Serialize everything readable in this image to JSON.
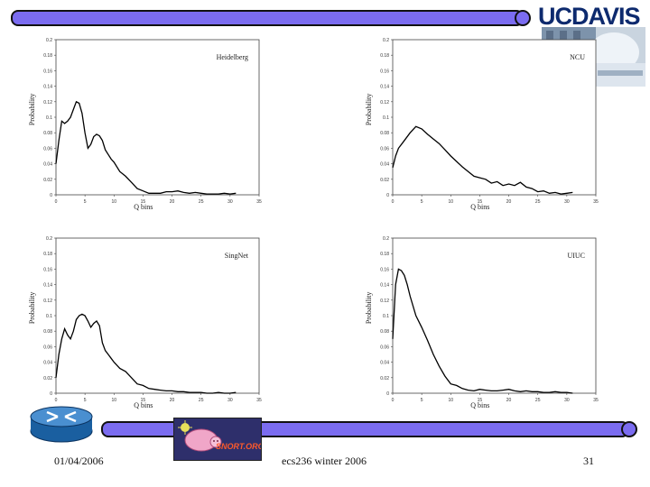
{
  "header": {
    "logo_uc": "UC",
    "logo_davis": "DAVIS"
  },
  "footer": {
    "date": "01/04/2006",
    "course": "ecs236 winter 2006",
    "page": "31",
    "snort_text": "SNORT.ORG"
  },
  "colors": {
    "bar": "#7b6cf0",
    "logo": "#0d2a6e",
    "snort_bg": "#2e2f6b"
  },
  "chart_data": [
    {
      "type": "line",
      "title": "Heidelberg",
      "xlabel": "Q bins",
      "ylabel": "Probability",
      "xlim": [
        0,
        35
      ],
      "ylim": [
        0,
        0.2
      ],
      "xticks": [
        "0",
        "5",
        "10",
        "15",
        "20",
        "25",
        "30",
        "35"
      ],
      "yticks": [
        "0",
        "0.02",
        "0.04",
        "0.06",
        "0.08",
        "0.1",
        "0.12",
        "0.14",
        "0.16",
        "0.18",
        "0.2"
      ],
      "x": [
        0,
        0.5,
        1,
        1.5,
        2,
        2.5,
        3,
        3.5,
        4,
        4.5,
        5,
        5.5,
        6,
        6.5,
        7,
        7.5,
        8,
        8.5,
        9,
        9.5,
        10,
        11,
        12,
        13,
        14,
        15,
        16,
        17,
        18,
        19,
        20,
        21,
        22,
        23,
        24,
        25,
        26,
        27,
        28,
        29,
        30,
        31
      ],
      "y": [
        0.04,
        0.07,
        0.095,
        0.092,
        0.095,
        0.1,
        0.11,
        0.12,
        0.118,
        0.105,
        0.08,
        0.06,
        0.065,
        0.075,
        0.078,
        0.076,
        0.07,
        0.058,
        0.052,
        0.046,
        0.042,
        0.03,
        0.024,
        0.016,
        0.008,
        0.005,
        0.002,
        0.002,
        0.002,
        0.004,
        0.004,
        0.005,
        0.003,
        0.002,
        0.003,
        0.002,
        0.001,
        0.001,
        0.001,
        0.002,
        0.001,
        0.002
      ]
    },
    {
      "type": "line",
      "title": "NCU",
      "xlabel": "Q bins",
      "ylabel": "Probability",
      "xlim": [
        0,
        35
      ],
      "ylim": [
        0,
        0.2
      ],
      "xticks": [
        "0",
        "5",
        "10",
        "15",
        "20",
        "25",
        "30",
        "35"
      ],
      "yticks": [
        "0",
        "0.02",
        "0.04",
        "0.06",
        "0.08",
        "0.1",
        "0.12",
        "0.14",
        "0.16",
        "0.18",
        "0.2"
      ],
      "x": [
        0,
        0.5,
        1,
        2,
        3,
        4,
        5,
        6,
        7,
        8,
        9,
        10,
        11,
        12,
        13,
        14,
        15,
        16,
        17,
        18,
        19,
        20,
        21,
        22,
        23,
        24,
        25,
        26,
        27,
        28,
        29,
        30,
        31
      ],
      "y": [
        0.035,
        0.05,
        0.06,
        0.07,
        0.08,
        0.088,
        0.085,
        0.078,
        0.072,
        0.066,
        0.058,
        0.05,
        0.043,
        0.036,
        0.03,
        0.024,
        0.022,
        0.02,
        0.015,
        0.017,
        0.012,
        0.014,
        0.012,
        0.016,
        0.01,
        0.008,
        0.004,
        0.005,
        0.002,
        0.003,
        0.001,
        0.002,
        0.003
      ]
    },
    {
      "type": "line",
      "title": "SingNet",
      "xlabel": "Q bins",
      "ylabel": "Probability",
      "xlim": [
        0,
        35
      ],
      "ylim": [
        0,
        0.2
      ],
      "xticks": [
        "0",
        "5",
        "10",
        "15",
        "20",
        "25",
        "30",
        "35"
      ],
      "yticks": [
        "0",
        "0.02",
        "0.04",
        "0.06",
        "0.08",
        "0.1",
        "0.12",
        "0.14",
        "0.16",
        "0.18",
        "0.2"
      ],
      "x": [
        0,
        0.5,
        1,
        1.5,
        2,
        2.5,
        3,
        3.5,
        4,
        4.5,
        5,
        5.5,
        6,
        6.5,
        7,
        7.5,
        8,
        8.5,
        9,
        9.5,
        10,
        11,
        12,
        13,
        14,
        15,
        16,
        17,
        18,
        19,
        20,
        21,
        22,
        23,
        24,
        25,
        26,
        27,
        28,
        29,
        30,
        31
      ],
      "y": [
        0.02,
        0.05,
        0.07,
        0.083,
        0.075,
        0.07,
        0.08,
        0.095,
        0.1,
        0.102,
        0.1,
        0.093,
        0.085,
        0.09,
        0.093,
        0.087,
        0.065,
        0.055,
        0.05,
        0.045,
        0.04,
        0.032,
        0.028,
        0.02,
        0.012,
        0.01,
        0.006,
        0.005,
        0.004,
        0.003,
        0.003,
        0.002,
        0.002,
        0.001,
        0.001,
        0.001,
        0.0,
        0.0,
        0.001,
        0.0,
        0.0,
        0.001
      ]
    },
    {
      "type": "line",
      "title": "UIUC",
      "xlabel": "Q bins",
      "ylabel": "Probability",
      "xlim": [
        0,
        35
      ],
      "ylim": [
        0,
        0.2
      ],
      "xticks": [
        "0",
        "5",
        "10",
        "15",
        "20",
        "25",
        "30",
        "35"
      ],
      "yticks": [
        "0",
        "0.02",
        "0.04",
        "0.06",
        "0.08",
        "0.1",
        "0.12",
        "0.14",
        "0.16",
        "0.18",
        "0.2"
      ],
      "x": [
        0,
        0.5,
        1,
        1.5,
        2,
        2.5,
        3,
        4,
        5,
        6,
        7,
        8,
        9,
        10,
        11,
        12,
        13,
        14,
        15,
        16,
        17,
        18,
        19,
        20,
        21,
        22,
        23,
        24,
        25,
        26,
        27,
        28,
        29,
        30,
        31
      ],
      "y": [
        0.07,
        0.14,
        0.16,
        0.158,
        0.152,
        0.14,
        0.125,
        0.1,
        0.085,
        0.068,
        0.05,
        0.035,
        0.022,
        0.012,
        0.01,
        0.006,
        0.004,
        0.003,
        0.005,
        0.004,
        0.003,
        0.003,
        0.004,
        0.005,
        0.003,
        0.002,
        0.003,
        0.002,
        0.002,
        0.001,
        0.001,
        0.002,
        0.001,
        0.001,
        0.0
      ]
    }
  ]
}
